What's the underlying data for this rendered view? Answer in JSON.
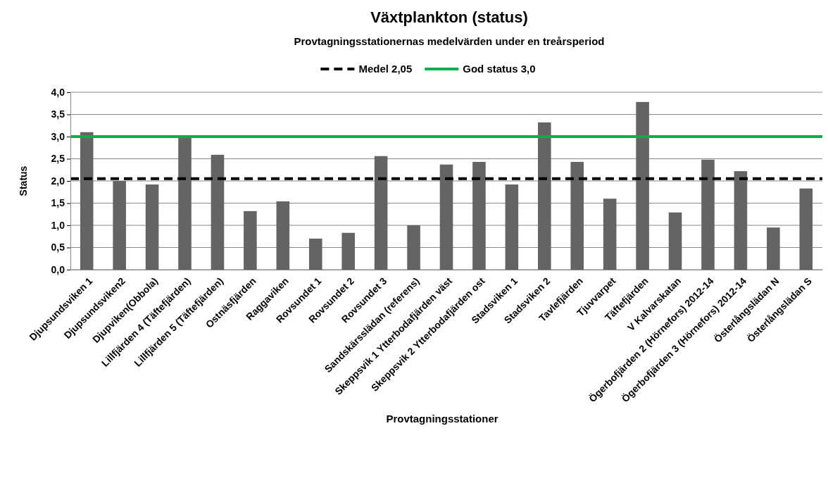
{
  "chart_data": {
    "type": "bar",
    "title": "Växtplankton (status)",
    "subtitle": "Provtagningsstationernas medelvärden under en treårsperiod",
    "xlabel": "Provtagningsstationer",
    "ylabel": "Status",
    "categories": [
      "Djupsundsviken 1",
      "Djupsundsviken2",
      "Djupviken(Obbola)",
      "Lillfjärden 4 (Täftefjärden)",
      "Lillfjärden 5 (Täftefjärden)",
      "Ostnäsfjärden",
      "Raggaviken",
      "Rovsundet 1",
      "Rovsundet 2",
      "Rovsundet 3",
      "Sandskärsslädan (referens)",
      "Skeppsvik 1 Ytterbodafjärden väst",
      "Skeppsvik 2 Ytterbodafjärden ost",
      "Stadsviken 1",
      "Stadsviken 2",
      "Tavlefjärden",
      "Tjuvvarpet",
      "Täftefjärden",
      "V Kalvarskatan",
      "Ögerbofjärden 2 (Hörnefors) 2012-14",
      "Ögerbofjärden 3 (Hörnefors) 2012-14",
      "Österlångslädan N",
      "Österlångslädan S"
    ],
    "values": [
      3.1,
      2.0,
      1.92,
      2.98,
      2.59,
      1.32,
      1.54,
      0.7,
      0.83,
      2.56,
      1.0,
      2.37,
      2.43,
      1.92,
      3.32,
      2.43,
      1.6,
      3.78,
      1.29,
      2.48,
      2.22,
      0.95,
      1.83
    ],
    "color": "#646464",
    "ylim": [
      0,
      4
    ],
    "yticks": [
      {
        "value": 0,
        "label": "0,0"
      },
      {
        "value": 0.5,
        "label": "0,5"
      },
      {
        "value": 1,
        "label": "1,0"
      },
      {
        "value": 1.5,
        "label": "1,5"
      },
      {
        "value": 2,
        "label": "2,0"
      },
      {
        "value": 2.5,
        "label": "2,5"
      },
      {
        "value": 3,
        "label": "3,0"
      },
      {
        "value": 3.5,
        "label": "3,5"
      },
      {
        "value": 4,
        "label": "4,0"
      }
    ],
    "grid": "y",
    "legend": "top",
    "ref_lines": [
      {
        "axis": "y",
        "value": 2.05,
        "label": "Medel 2,05",
        "color": "#000000",
        "line_style": "dashed"
      },
      {
        "axis": "y",
        "value": 3.0,
        "label": "God status 3,0",
        "color": "#00b050",
        "line_style": "solid"
      }
    ]
  }
}
